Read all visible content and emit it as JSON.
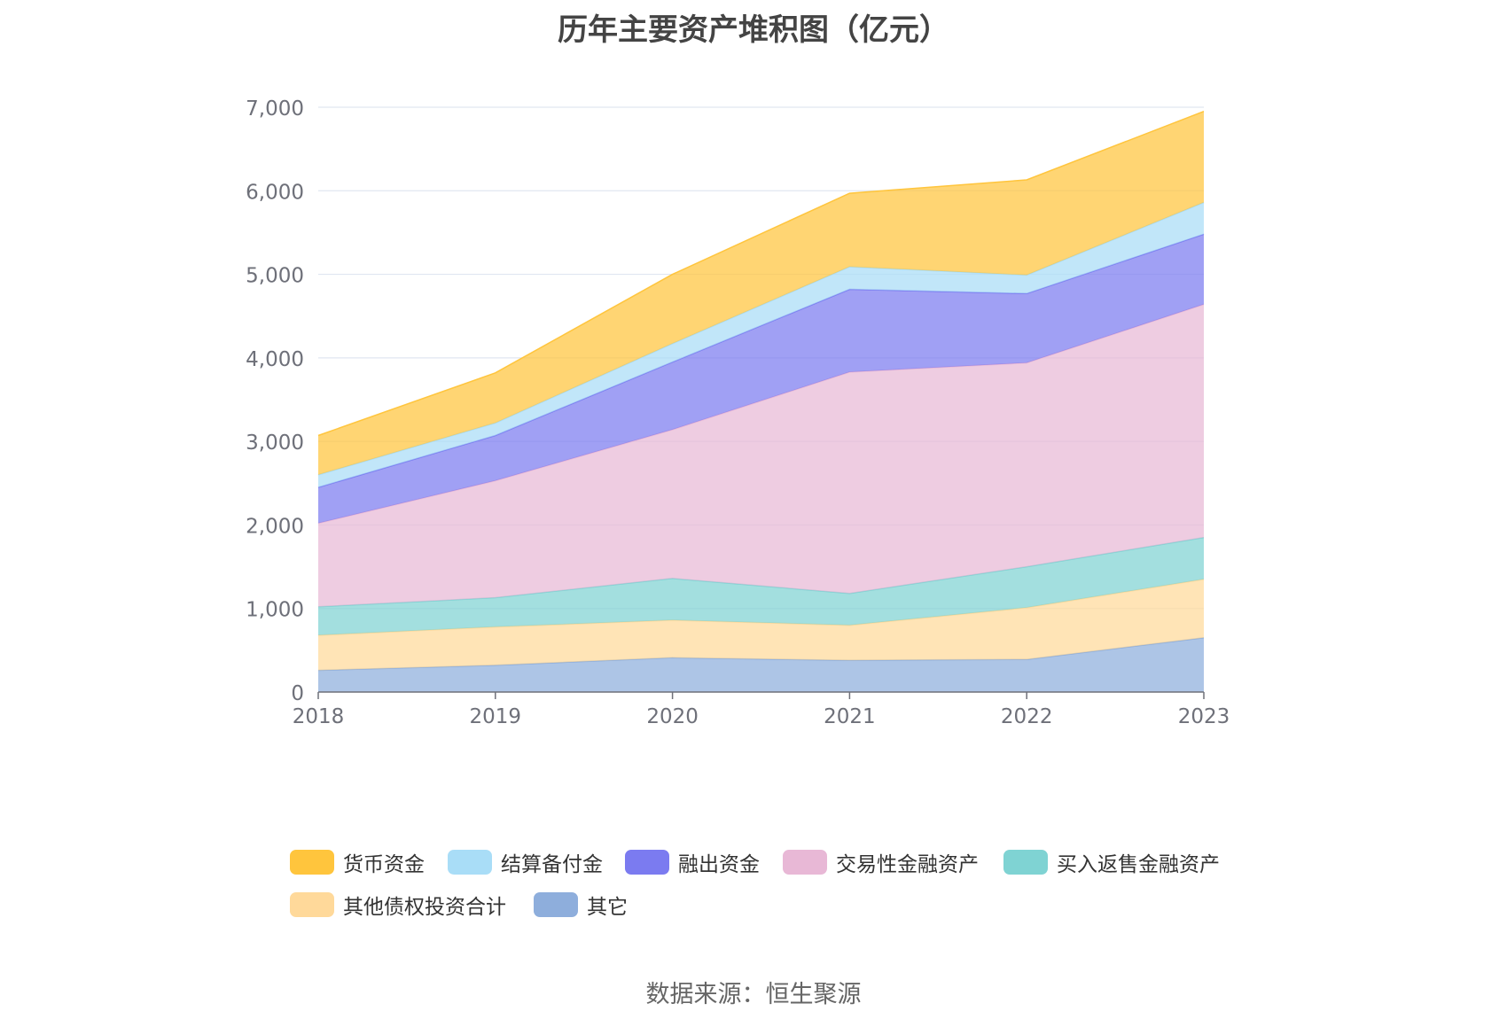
{
  "chart_data": {
    "type": "area",
    "stacked": true,
    "title": "历年主要资产堆积图（亿元）",
    "categories": [
      "2018",
      "2019",
      "2020",
      "2021",
      "2022",
      "2023"
    ],
    "ylim": [
      0,
      7000
    ],
    "yticks": [
      "0",
      "1,000",
      "2,000",
      "3,000",
      "4,000",
      "5,000",
      "6,000",
      "7,000"
    ],
    "ytick_values": [
      0,
      1000,
      2000,
      3000,
      4000,
      5000,
      6000,
      7000
    ],
    "grid": true,
    "legend_position": "bottom",
    "series": [
      {
        "name": "其它",
        "color": "#8eaedc",
        "values": [
          260,
          320,
          410,
          380,
          390,
          650
        ]
      },
      {
        "name": "其他债权投资合计",
        "color": "#ffd99a",
        "values": [
          420,
          460,
          450,
          420,
          620,
          700
        ]
      },
      {
        "name": "买入返售金融资产",
        "color": "#7fd3d3",
        "values": [
          340,
          350,
          500,
          380,
          490,
          500
        ]
      },
      {
        "name": "交易性金融资产",
        "color": "#e8b8d6",
        "values": [
          1000,
          1400,
          1780,
          2650,
          2440,
          2790
        ]
      },
      {
        "name": "融出资金",
        "color": "#7b7bf0",
        "values": [
          430,
          540,
          810,
          990,
          830,
          840
        ]
      },
      {
        "name": "结算备付金",
        "color": "#a9ddf7",
        "values": [
          150,
          150,
          220,
          270,
          220,
          380
        ]
      },
      {
        "name": "货币资金",
        "color": "#ffc53d",
        "values": [
          470,
          600,
          830,
          880,
          1140,
          1090
        ]
      }
    ],
    "legend_order": [
      "货币资金",
      "结算备付金",
      "融出资金",
      "交易性金融资产",
      "买入返售金融资产",
      "其他债权投资合计",
      "其它"
    ]
  },
  "source_text": "数据来源：恒生聚源"
}
